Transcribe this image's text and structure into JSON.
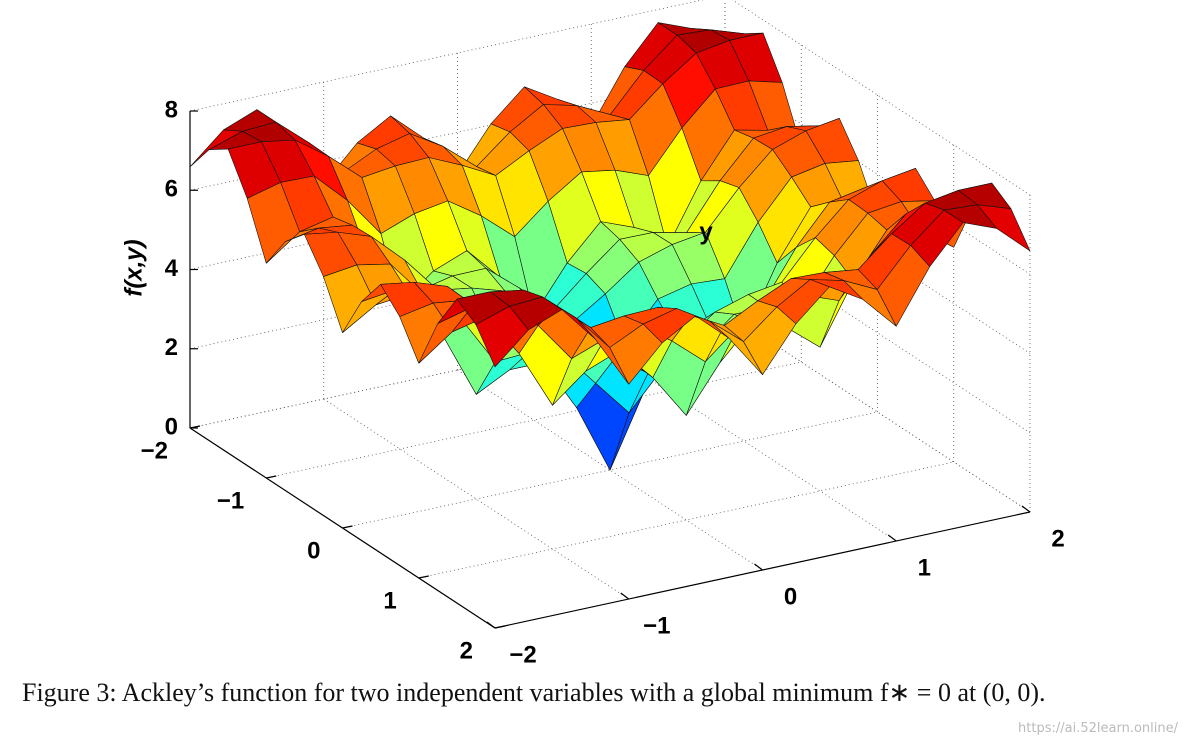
{
  "chart_data": {
    "type": "surface",
    "zlabel": "f(x,y)",
    "ylabel": "y",
    "colormap": "jet",
    "x": [
      -2,
      -1.75,
      -1.5,
      -1.25,
      -1,
      -0.75,
      -0.5,
      -0.25,
      0,
      0.25,
      0.5,
      0.75,
      1,
      1.25,
      1.5,
      1.75,
      2
    ],
    "y": [
      -2,
      -1.75,
      -1.5,
      -1.25,
      -1,
      -0.75,
      -0.5,
      -0.25,
      0,
      0.25,
      0.5,
      0.75,
      1,
      1.25,
      1.5,
      1.75,
      2
    ],
    "z": [
      [
        6.59,
        7.34,
        7.67,
        6.74,
        5.42,
        6.28,
        6.78,
        6.03,
        4.93,
        6.03,
        6.78,
        6.28,
        5.42,
        6.74,
        7.67,
        7.34,
        6.59
      ],
      [
        7.34,
        7.62,
        7.67,
        6.96,
        6.03,
        6.44,
        6.65,
        6.14,
        5.45,
        6.14,
        6.65,
        6.44,
        6.03,
        6.96,
        7.67,
        7.62,
        7.34
      ],
      [
        7.67,
        7.67,
        7.53,
        6.94,
        6.22,
        6.33,
        6.36,
        5.98,
        5.54,
        5.98,
        6.36,
        6.33,
        6.22,
        6.94,
        7.53,
        7.67,
        7.67
      ],
      [
        6.74,
        6.96,
        6.94,
        6.14,
        5.12,
        5.44,
        5.58,
        5.02,
        4.31,
        5.02,
        5.58,
        5.44,
        5.12,
        6.14,
        6.94,
        6.96,
        6.74
      ],
      [
        5.42,
        6.03,
        6.22,
        5.12,
        3.63,
        4.31,
        4.64,
        3.78,
        2.64,
        3.78,
        4.64,
        4.31,
        3.63,
        5.12,
        6.22,
        6.03,
        5.42
      ],
      [
        6.28,
        6.44,
        6.33,
        5.44,
        4.31,
        4.5,
        4.51,
        3.83,
        3.08,
        3.83,
        4.51,
        4.5,
        4.31,
        5.44,
        6.33,
        6.44,
        6.28
      ],
      [
        6.78,
        6.65,
        6.36,
        5.58,
        4.64,
        4.51,
        4.25,
        3.63,
        3.08,
        3.63,
        4.25,
        4.51,
        4.64,
        5.58,
        6.36,
        6.65,
        6.78
      ],
      [
        6.03,
        6.14,
        5.98,
        5.02,
        3.78,
        3.83,
        3.63,
        2.69,
        1.76,
        2.69,
        3.63,
        3.83,
        3.78,
        5.02,
        5.98,
        6.14,
        6.03
      ],
      [
        4.93,
        5.45,
        5.54,
        4.31,
        2.64,
        3.08,
        3.08,
        1.76,
        0,
        1.76,
        3.08,
        3.08,
        2.64,
        4.31,
        5.54,
        5.45,
        4.93
      ],
      [
        6.03,
        6.14,
        5.98,
        5.02,
        3.78,
        3.83,
        3.63,
        2.69,
        1.76,
        2.69,
        3.63,
        3.83,
        3.78,
        5.02,
        5.98,
        6.14,
        6.03
      ],
      [
        6.78,
        6.65,
        6.36,
        5.58,
        4.64,
        4.51,
        4.25,
        3.63,
        3.08,
        3.63,
        4.25,
        4.51,
        4.64,
        5.58,
        6.36,
        6.65,
        6.78
      ],
      [
        6.28,
        6.44,
        6.33,
        5.44,
        4.31,
        4.5,
        4.51,
        3.83,
        3.08,
        3.83,
        4.51,
        4.5,
        4.31,
        5.44,
        6.33,
        6.44,
        6.28
      ],
      [
        5.42,
        6.03,
        6.22,
        5.12,
        3.63,
        4.31,
        4.64,
        3.78,
        2.64,
        3.78,
        4.64,
        4.31,
        3.63,
        5.12,
        6.22,
        6.03,
        5.42
      ],
      [
        6.74,
        6.96,
        6.94,
        6.14,
        5.12,
        5.44,
        5.58,
        5.02,
        4.31,
        5.02,
        5.58,
        5.44,
        5.12,
        6.14,
        6.94,
        6.96,
        6.74
      ],
      [
        7.67,
        7.67,
        7.53,
        6.94,
        6.22,
        6.33,
        6.36,
        5.98,
        5.54,
        5.98,
        6.36,
        6.33,
        6.22,
        6.94,
        7.53,
        7.67,
        7.67
      ],
      [
        7.34,
        7.62,
        7.67,
        6.96,
        6.03,
        6.44,
        6.65,
        6.14,
        5.45,
        6.14,
        6.65,
        6.44,
        6.03,
        6.96,
        7.67,
        7.62,
        7.34
      ],
      [
        6.59,
        7.34,
        7.67,
        6.74,
        5.42,
        6.28,
        6.78,
        6.03,
        4.93,
        6.03,
        6.78,
        6.28,
        5.42,
        6.74,
        7.67,
        7.34,
        6.59
      ]
    ],
    "xlim": [
      -2,
      2
    ],
    "ylim": [
      -2,
      2
    ],
    "zlim": [
      0,
      8
    ],
    "xticks": [
      {
        "value": -2,
        "label": "−2"
      },
      {
        "value": -1,
        "label": "−1"
      },
      0,
      1,
      2
    ],
    "yticks": [
      {
        "value": -2,
        "label": "−2"
      },
      {
        "value": -1,
        "label": "−1"
      },
      0,
      1,
      2
    ],
    "zticks": [
      0,
      2,
      4,
      6,
      8
    ],
    "grid": true
  },
  "caption": "Figure 3: Ackley’s function for two independent variables with a global minimum f∗ = 0 at (0, 0).",
  "watermark": "https://ai.52learn.online/"
}
